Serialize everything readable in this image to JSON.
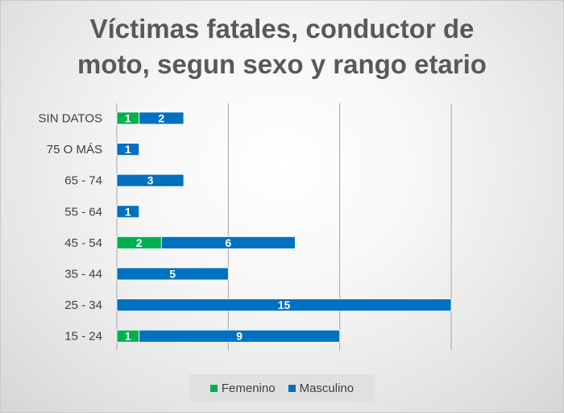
{
  "chart_data": {
    "type": "bar",
    "orientation": "horizontal",
    "stacked": true,
    "title": "Víctimas fatales, conductor de moto, segun sexo y rango etario",
    "title_lines": [
      "Víctimas fatales, conductor de",
      "moto, segun sexo y rango etario"
    ],
    "categories": [
      "SIN DATOS",
      "75 O MÁS",
      "65 - 74",
      "55 - 64",
      "45 - 54",
      "35 - 44",
      "25 - 34",
      "15 - 24"
    ],
    "series": [
      {
        "name": "Femenino",
        "color": "#00b050",
        "values": [
          1,
          0,
          0,
          0,
          2,
          0,
          0,
          1
        ]
      },
      {
        "name": "Masculino",
        "color": "#0070c0",
        "values": [
          2,
          1,
          3,
          1,
          6,
          5,
          15,
          9
        ]
      }
    ],
    "xlim": [
      0,
      15
    ],
    "x_gridlines": [
      5,
      10,
      15
    ],
    "grid": true,
    "xlabel": "",
    "ylabel": "",
    "legend_position": "bottom",
    "data_labels": true
  }
}
